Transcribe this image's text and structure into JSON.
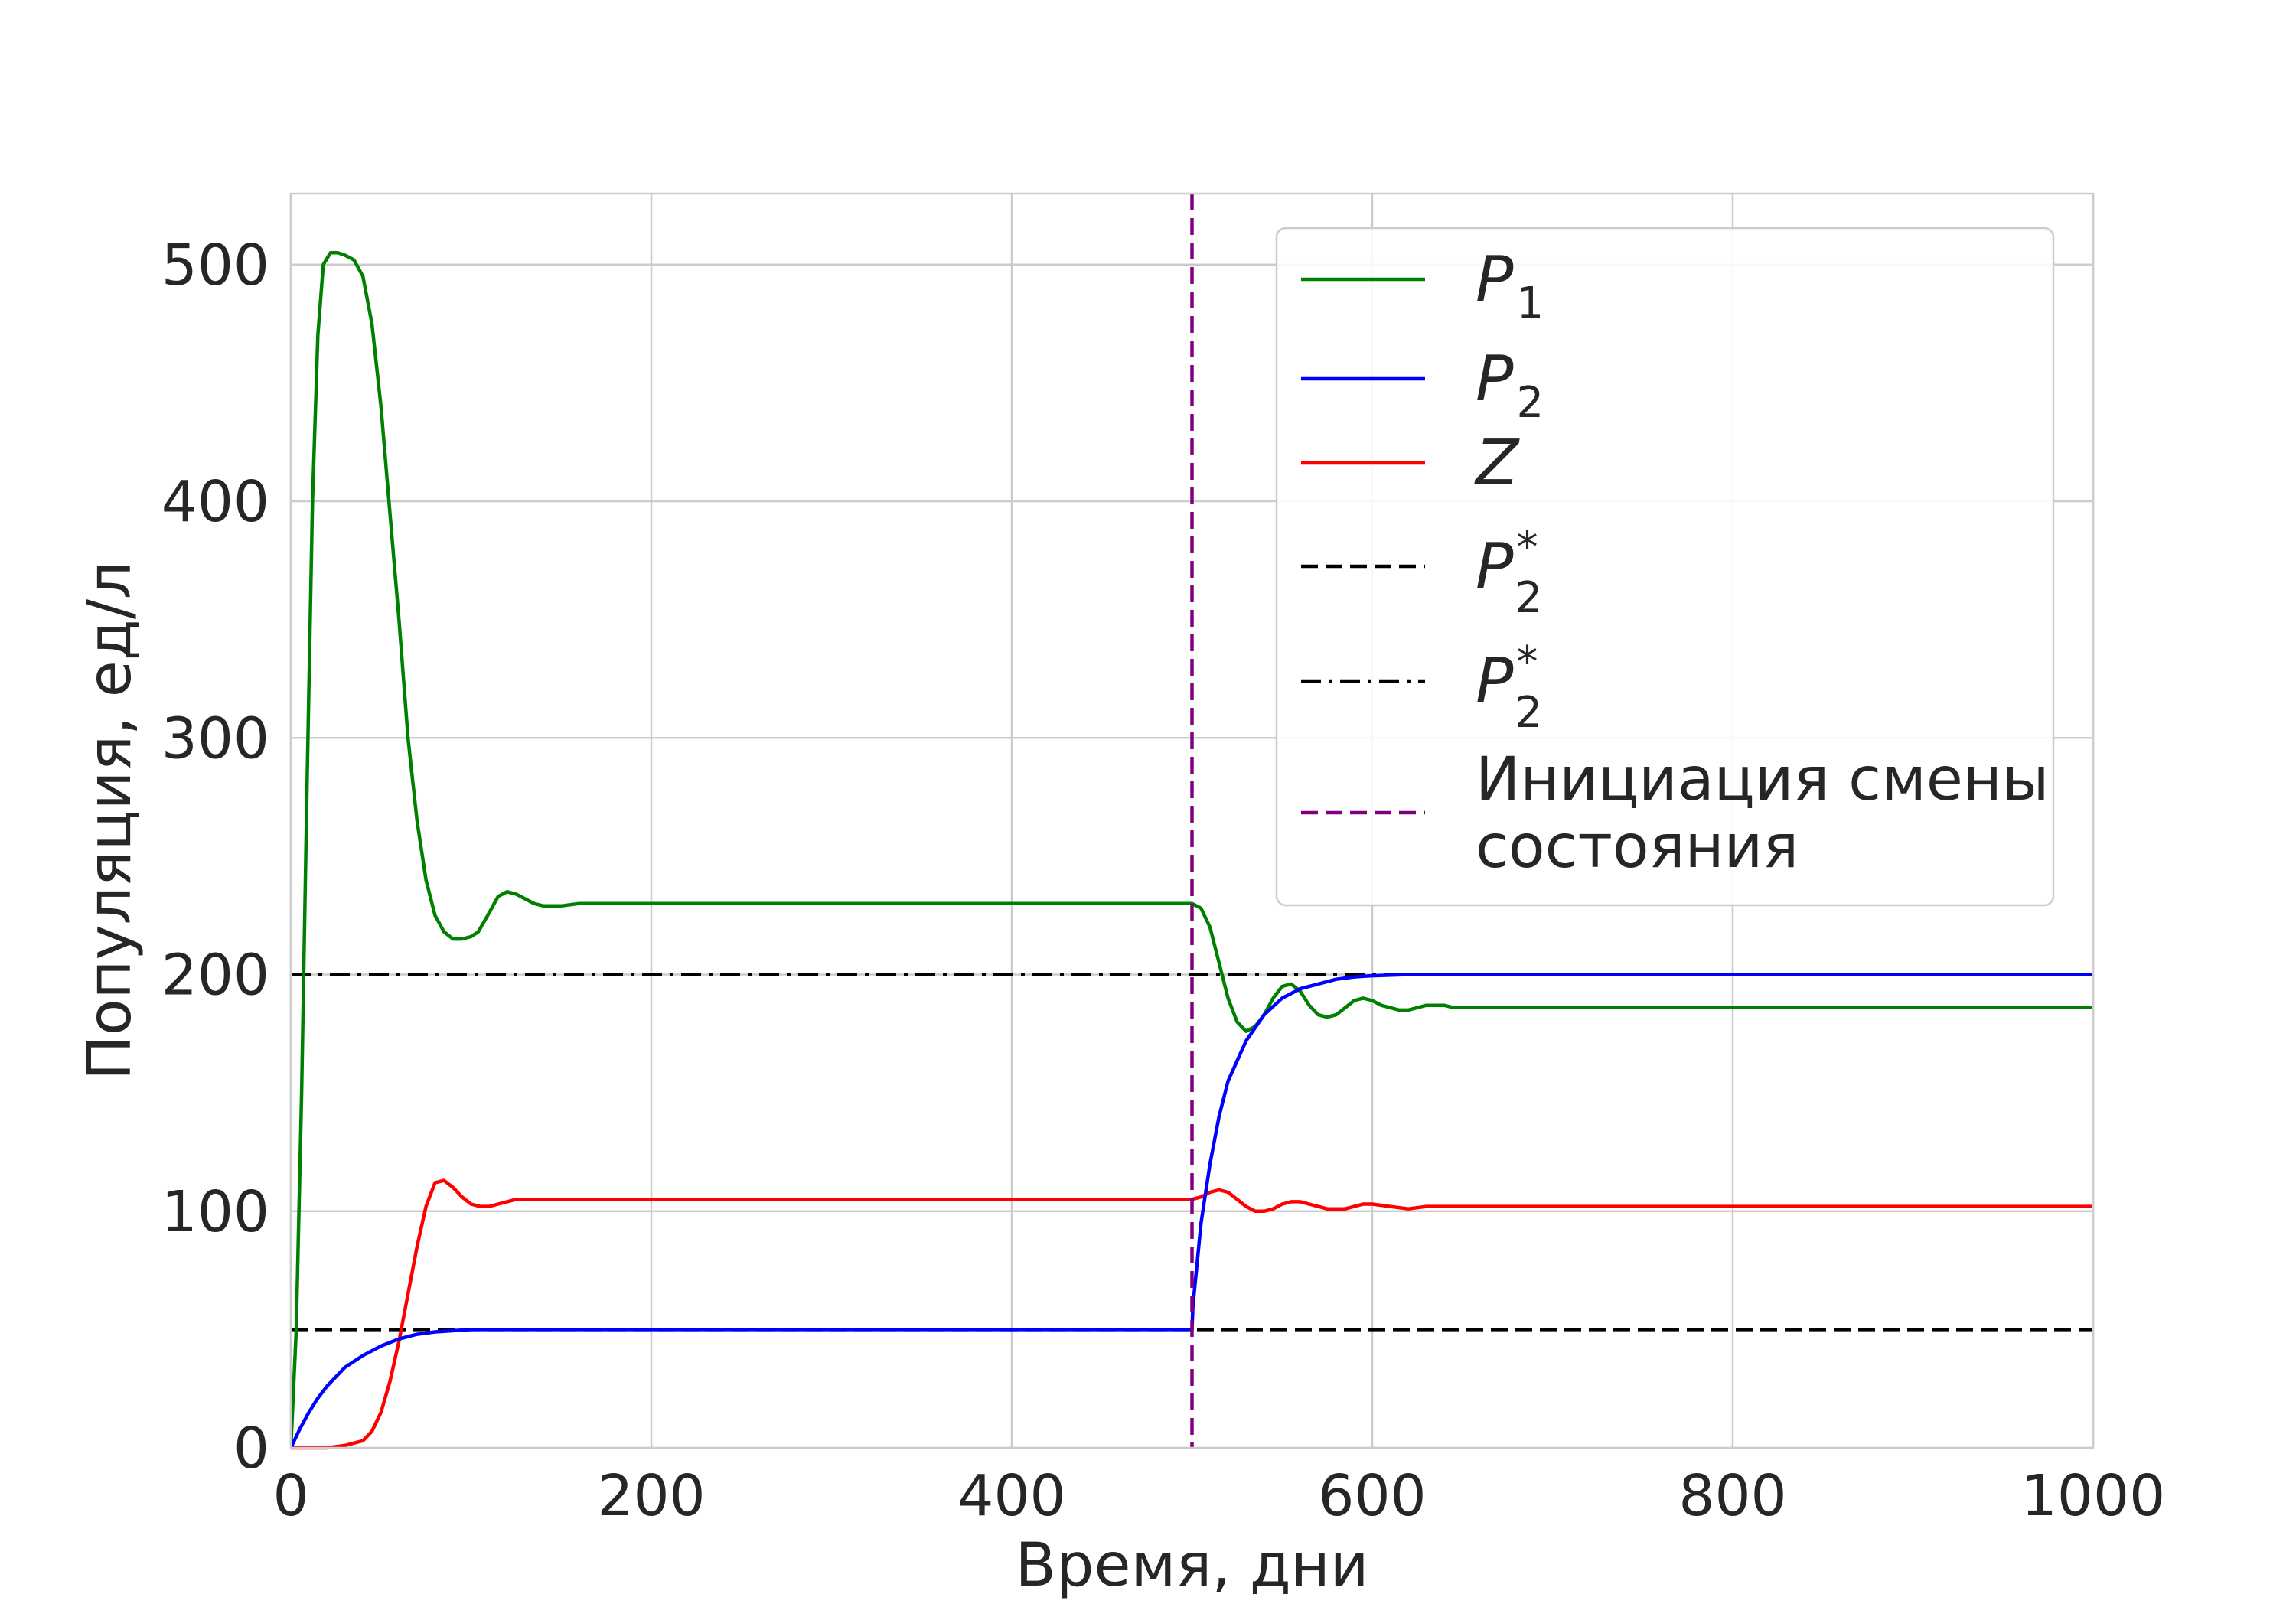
{
  "chart_data": {
    "type": "line",
    "xlabel": "Время, дни",
    "ylabel": "Популяция, ед/л",
    "xlim": [
      0,
      1000
    ],
    "ylim": [
      0,
      530
    ],
    "xticks": [
      0,
      200,
      400,
      600,
      800,
      1000
    ],
    "yticks": [
      0,
      100,
      200,
      300,
      400,
      500
    ],
    "xtick_labels": [
      "0",
      "200",
      "400",
      "600",
      "800",
      "1000"
    ],
    "ytick_labels": [
      "0",
      "100",
      "200",
      "300",
      "400",
      "500"
    ],
    "grid": true,
    "legend_position": "top-right",
    "series": [
      {
        "name": "P1",
        "legend_main": "P",
        "legend_sub": "1",
        "legend_sup": "",
        "color": "#008000",
        "style": "solid",
        "x": [
          0,
          3,
          6,
          9,
          12,
          15,
          18,
          22,
          26,
          30,
          35,
          40,
          45,
          50,
          55,
          60,
          65,
          70,
          75,
          80,
          85,
          90,
          95,
          100,
          104,
          110,
          115,
          120,
          125,
          130,
          135,
          140,
          145,
          150,
          160,
          170,
          180,
          200,
          250,
          300,
          350,
          400,
          450,
          490,
          500,
          505,
          510,
          515,
          520,
          525,
          530,
          535,
          540,
          545,
          550,
          555,
          560,
          565,
          570,
          575,
          580,
          585,
          590,
          595,
          600,
          605,
          610,
          615,
          620,
          625,
          630,
          635,
          640,
          645,
          650,
          655,
          660,
          670,
          680,
          690,
          700,
          720,
          740,
          760,
          800,
          850,
          900,
          950,
          1000
        ],
        "y": [
          0,
          50,
          150,
          280,
          400,
          470,
          500,
          505,
          505,
          504,
          502,
          495,
          475,
          440,
          395,
          350,
          300,
          265,
          240,
          225,
          218,
          215,
          215,
          216,
          218,
          226,
          233,
          235,
          234,
          232,
          230,
          229,
          229,
          229,
          230,
          230,
          230,
          230,
          230,
          230,
          230,
          230,
          230,
          230,
          230,
          228,
          220,
          205,
          190,
          180,
          176,
          178,
          183,
          190,
          195,
          196,
          193,
          187,
          183,
          182,
          183,
          186,
          189,
          190,
          189,
          187,
          186,
          185,
          185,
          186,
          187,
          187,
          187,
          186,
          186,
          186,
          186,
          186,
          186,
          186,
          186,
          186,
          186,
          186,
          186,
          186,
          186,
          186,
          186
        ]
      },
      {
        "name": "P2",
        "legend_main": "P",
        "legend_sub": "2",
        "legend_sup": "",
        "color": "#0000ff",
        "style": "solid",
        "x": [
          0,
          5,
          10,
          15,
          20,
          25,
          30,
          40,
          50,
          60,
          70,
          80,
          100,
          150,
          200,
          300,
          400,
          500,
          500.5,
          505,
          510,
          515,
          520,
          530,
          540,
          550,
          560,
          570,
          580,
          590,
          600,
          620,
          650,
          700,
          800,
          900,
          1000
        ],
        "y": [
          0,
          8,
          15,
          21,
          26,
          30,
          34,
          39,
          43,
          46,
          48,
          49,
          50,
          50,
          50,
          50,
          50,
          50,
          60,
          95,
          120,
          140,
          155,
          172,
          183,
          190,
          194,
          196,
          198,
          199,
          199.5,
          200,
          200,
          200,
          200,
          200,
          200
        ]
      },
      {
        "name": "Z",
        "legend_main": "Z",
        "legend_sub": "",
        "legend_sup": "",
        "color": "#ff0000",
        "style": "solid",
        "x": [
          0,
          10,
          20,
          30,
          40,
          45,
          50,
          55,
          60,
          65,
          70,
          75,
          80,
          85,
          90,
          95,
          100,
          105,
          110,
          115,
          120,
          125,
          130,
          135,
          140,
          150,
          160,
          180,
          200,
          300,
          400,
          490,
          500,
          505,
          510,
          515,
          520,
          525,
          530,
          535,
          540,
          545,
          550,
          555,
          560,
          565,
          570,
          575,
          580,
          585,
          590,
          595,
          600,
          610,
          620,
          630,
          640,
          650,
          660,
          680,
          700,
          800,
          900,
          1000
        ],
        "y": [
          0,
          0,
          0,
          1,
          3,
          7,
          15,
          28,
          45,
          65,
          85,
          102,
          112,
          113,
          110,
          106,
          103,
          102,
          102,
          103,
          104,
          105,
          105,
          105,
          105,
          105,
          105,
          105,
          105,
          105,
          105,
          105,
          105,
          106,
          108,
          109,
          108,
          105,
          102,
          100,
          100,
          101,
          103,
          104,
          104,
          103,
          102,
          101,
          101,
          101,
          102,
          103,
          103,
          102,
          101,
          102,
          102,
          102,
          102,
          102,
          102,
          102,
          102,
          102
        ]
      },
      {
        "name": "P2* (dashed)",
        "legend_main": "P",
        "legend_sub": "2",
        "legend_sup": "*",
        "color": "#000000",
        "style": "dashed",
        "x": [
          0,
          1000
        ],
        "y": [
          50,
          50
        ]
      },
      {
        "name": "P2* (dash-dot)",
        "legend_main": "P",
        "legend_sub": "2",
        "legend_sup": "*",
        "color": "#000000",
        "style": "dashdot",
        "x": [
          0,
          1000
        ],
        "y": [
          200,
          200
        ]
      }
    ],
    "vline": {
      "x": 500,
      "color": "#800080",
      "style": "dashed",
      "label_line1": "Инициация смены",
      "label_line2": "состояния"
    }
  }
}
